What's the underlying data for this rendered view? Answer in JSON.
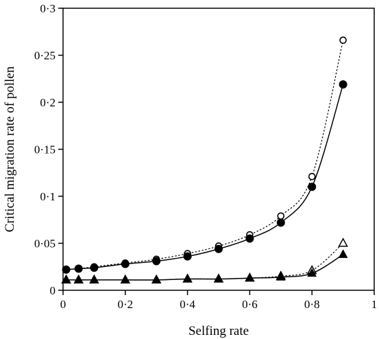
{
  "chart_data": {
    "type": "line",
    "title": "",
    "xlabel": "Selfing rate",
    "ylabel": "Critical migration rate of pollen",
    "xlim": [
      0,
      1
    ],
    "ylim": [
      0,
      0.3
    ],
    "x_ticks": [
      0,
      0.2,
      0.4,
      0.6,
      0.8,
      1
    ],
    "x_tick_labels": [
      "0",
      "0·2",
      "0·4",
      "0·6",
      "0·8",
      "1"
    ],
    "y_ticks": [
      0,
      0.05,
      0.1,
      0.15,
      0.2,
      0.25,
      0.3
    ],
    "y_tick_labels": [
      "0",
      "0·05",
      "0·1",
      "0·15",
      "0·2",
      "0·25",
      "0·3"
    ],
    "grid": false,
    "legend": "none",
    "series": [
      {
        "marker": "open-circle",
        "line_style": "dotted",
        "x": [
          0.01,
          0.05,
          0.1,
          0.2,
          0.3,
          0.4,
          0.5,
          0.6,
          0.7,
          0.8,
          0.9
        ],
        "y": [
          0.022,
          0.023,
          0.025,
          0.029,
          0.033,
          0.039,
          0.047,
          0.059,
          0.079,
          0.121,
          0.266
        ]
      },
      {
        "marker": "filled-circle",
        "line_style": "solid",
        "x": [
          0.01,
          0.05,
          0.1,
          0.2,
          0.3,
          0.4,
          0.5,
          0.6,
          0.7,
          0.8,
          0.9
        ],
        "y": [
          0.022,
          0.023,
          0.024,
          0.028,
          0.031,
          0.036,
          0.044,
          0.055,
          0.072,
          0.11,
          0.219
        ]
      },
      {
        "marker": "open-triangle",
        "line_style": "dotted",
        "x": [
          0.01,
          0.05,
          0.1,
          0.2,
          0.3,
          0.4,
          0.5,
          0.6,
          0.7,
          0.8,
          0.9
        ],
        "y": [
          0.011,
          0.011,
          0.011,
          0.011,
          0.011,
          0.012,
          0.012,
          0.013,
          0.015,
          0.021,
          0.05
        ]
      },
      {
        "marker": "filled-triangle",
        "line_style": "solid",
        "x": [
          0.01,
          0.05,
          0.1,
          0.2,
          0.3,
          0.4,
          0.5,
          0.6,
          0.7,
          0.8,
          0.9
        ],
        "y": [
          0.011,
          0.011,
          0.011,
          0.011,
          0.011,
          0.012,
          0.012,
          0.013,
          0.014,
          0.018,
          0.038
        ]
      }
    ]
  }
}
